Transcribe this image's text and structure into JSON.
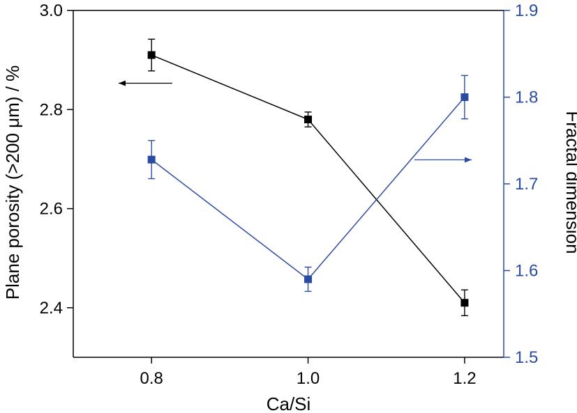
{
  "chart_data": {
    "type": "line",
    "xlabel": "Ca/Si",
    "x": [
      0.8,
      1.0,
      1.2
    ],
    "x_ticks": [
      "0.8",
      "1.0",
      "1.2"
    ],
    "xlim": [
      0.7,
      1.25
    ],
    "left_axis": {
      "label": "Plane porosity (>200 μm) / %",
      "ylim": [
        2.3,
        3.0
      ],
      "ticks": [
        "2.4",
        "2.6",
        "2.8",
        "3.0"
      ],
      "color": "#000000"
    },
    "right_axis": {
      "label": "Fractal dimension",
      "ylim": [
        1.5,
        1.9
      ],
      "ticks": [
        "1.5",
        "1.6",
        "1.7",
        "1.8",
        "1.9"
      ],
      "color": "#2b4ba3"
    },
    "series": [
      {
        "axis": "left",
        "color": "#000000",
        "marker": "square",
        "values": [
          2.91,
          2.78,
          2.41
        ],
        "errors": [
          0.032,
          0.015,
          0.026
        ]
      },
      {
        "axis": "right",
        "color": "#2b4ba3",
        "marker": "square",
        "values": [
          1.728,
          1.59,
          1.8
        ],
        "errors": [
          0.022,
          0.014,
          0.025
        ]
      }
    ],
    "annotations": [
      {
        "type": "arrow",
        "direction": "left",
        "series_axis": "left",
        "color": "#000000"
      },
      {
        "type": "arrow",
        "direction": "right",
        "series_axis": "right",
        "color": "#2b4ba3"
      }
    ]
  }
}
